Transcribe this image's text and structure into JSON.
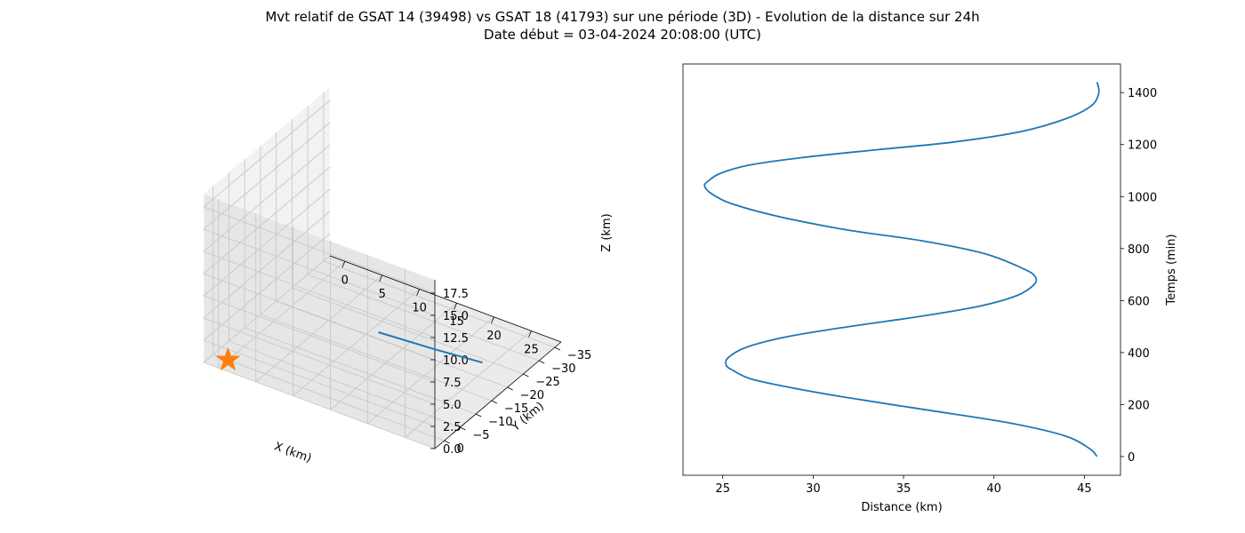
{
  "figure": {
    "title_line1": "Mvt relatif de GSAT 14 (39498) vs GSAT 18 (41793) sur une période (3D) - Evolution de la distance sur 24h",
    "title_line2": "Date début = 03-04-2024 20:08:00 (UTC)"
  },
  "colors": {
    "series": "#1f77b4",
    "marker": "#ff7f0e",
    "pane_left": "#f2f2f2",
    "pane_right": "#e6e6e6",
    "pane_floor": "#ebebeb"
  },
  "chart_data": [
    {
      "type": "line3d",
      "xlabel": "X (km)",
      "ylabel": "Y (km)",
      "zlabel": "Z (km)",
      "xlim": [
        -2,
        29
      ],
      "ylim": [
        -37,
        3
      ],
      "zlim": [
        0,
        19
      ],
      "xticks": [
        "0",
        "5",
        "10",
        "15",
        "20",
        "25"
      ],
      "yticks": [
        "0",
        "−5",
        "−10",
        "−15",
        "−20",
        "−25",
        "−30",
        "−35"
      ],
      "zticks": [
        "0.0",
        "2.5",
        "5.0",
        "7.5",
        "10.0",
        "12.5",
        "15.0",
        "17.5"
      ],
      "grid": true,
      "series": [
        {
          "points": [
            [
              21.0,
              2.0,
              10.3
            ],
            [
              24.0,
              -9.0,
              6.0
            ],
            [
              26.5,
              -18.0,
              2.6
            ]
          ]
        }
      ],
      "marker": {
        "symbol": "star",
        "point": [
          0,
          0,
          0
        ]
      }
    },
    {
      "type": "line",
      "xlabel": "Distance (km)",
      "ylabel": "Temps (min)",
      "xlim": [
        22.8,
        47.0
      ],
      "ylim": [
        -72,
        1510
      ],
      "xticks": [
        25,
        30,
        35,
        40,
        45
      ],
      "yticks": [
        0,
        200,
        400,
        600,
        800,
        1000,
        1200,
        1400
      ],
      "yaxis_position": "right",
      "grid": false,
      "series": [
        {
          "x": [
            45.7,
            45.3,
            43.9,
            40.8,
            36.2,
            31.6,
            28.4,
            26.5,
            25.6,
            25.2,
            25.3,
            26.3,
            28.5,
            32.0,
            36.0,
            39.3,
            41.3,
            42.2,
            42.3,
            41.7,
            39.5,
            36.0,
            32.0,
            28.3,
            25.6,
            24.4,
            24.0,
            24.2,
            24.9,
            26.4,
            29.4,
            33.5,
            37.8,
            41.5,
            44.0,
            45.4,
            45.8,
            45.7
          ],
          "t": [
            0,
            30,
            80,
            130,
            180,
            230,
            270,
            300,
            330,
            350,
            380,
            420,
            460,
            500,
            540,
            580,
            620,
            660,
            690,
            720,
            780,
            830,
            870,
            920,
            970,
            1010,
            1040,
            1060,
            1090,
            1120,
            1150,
            1180,
            1210,
            1250,
            1300,
            1350,
            1400,
            1440
          ]
        }
      ]
    }
  ]
}
